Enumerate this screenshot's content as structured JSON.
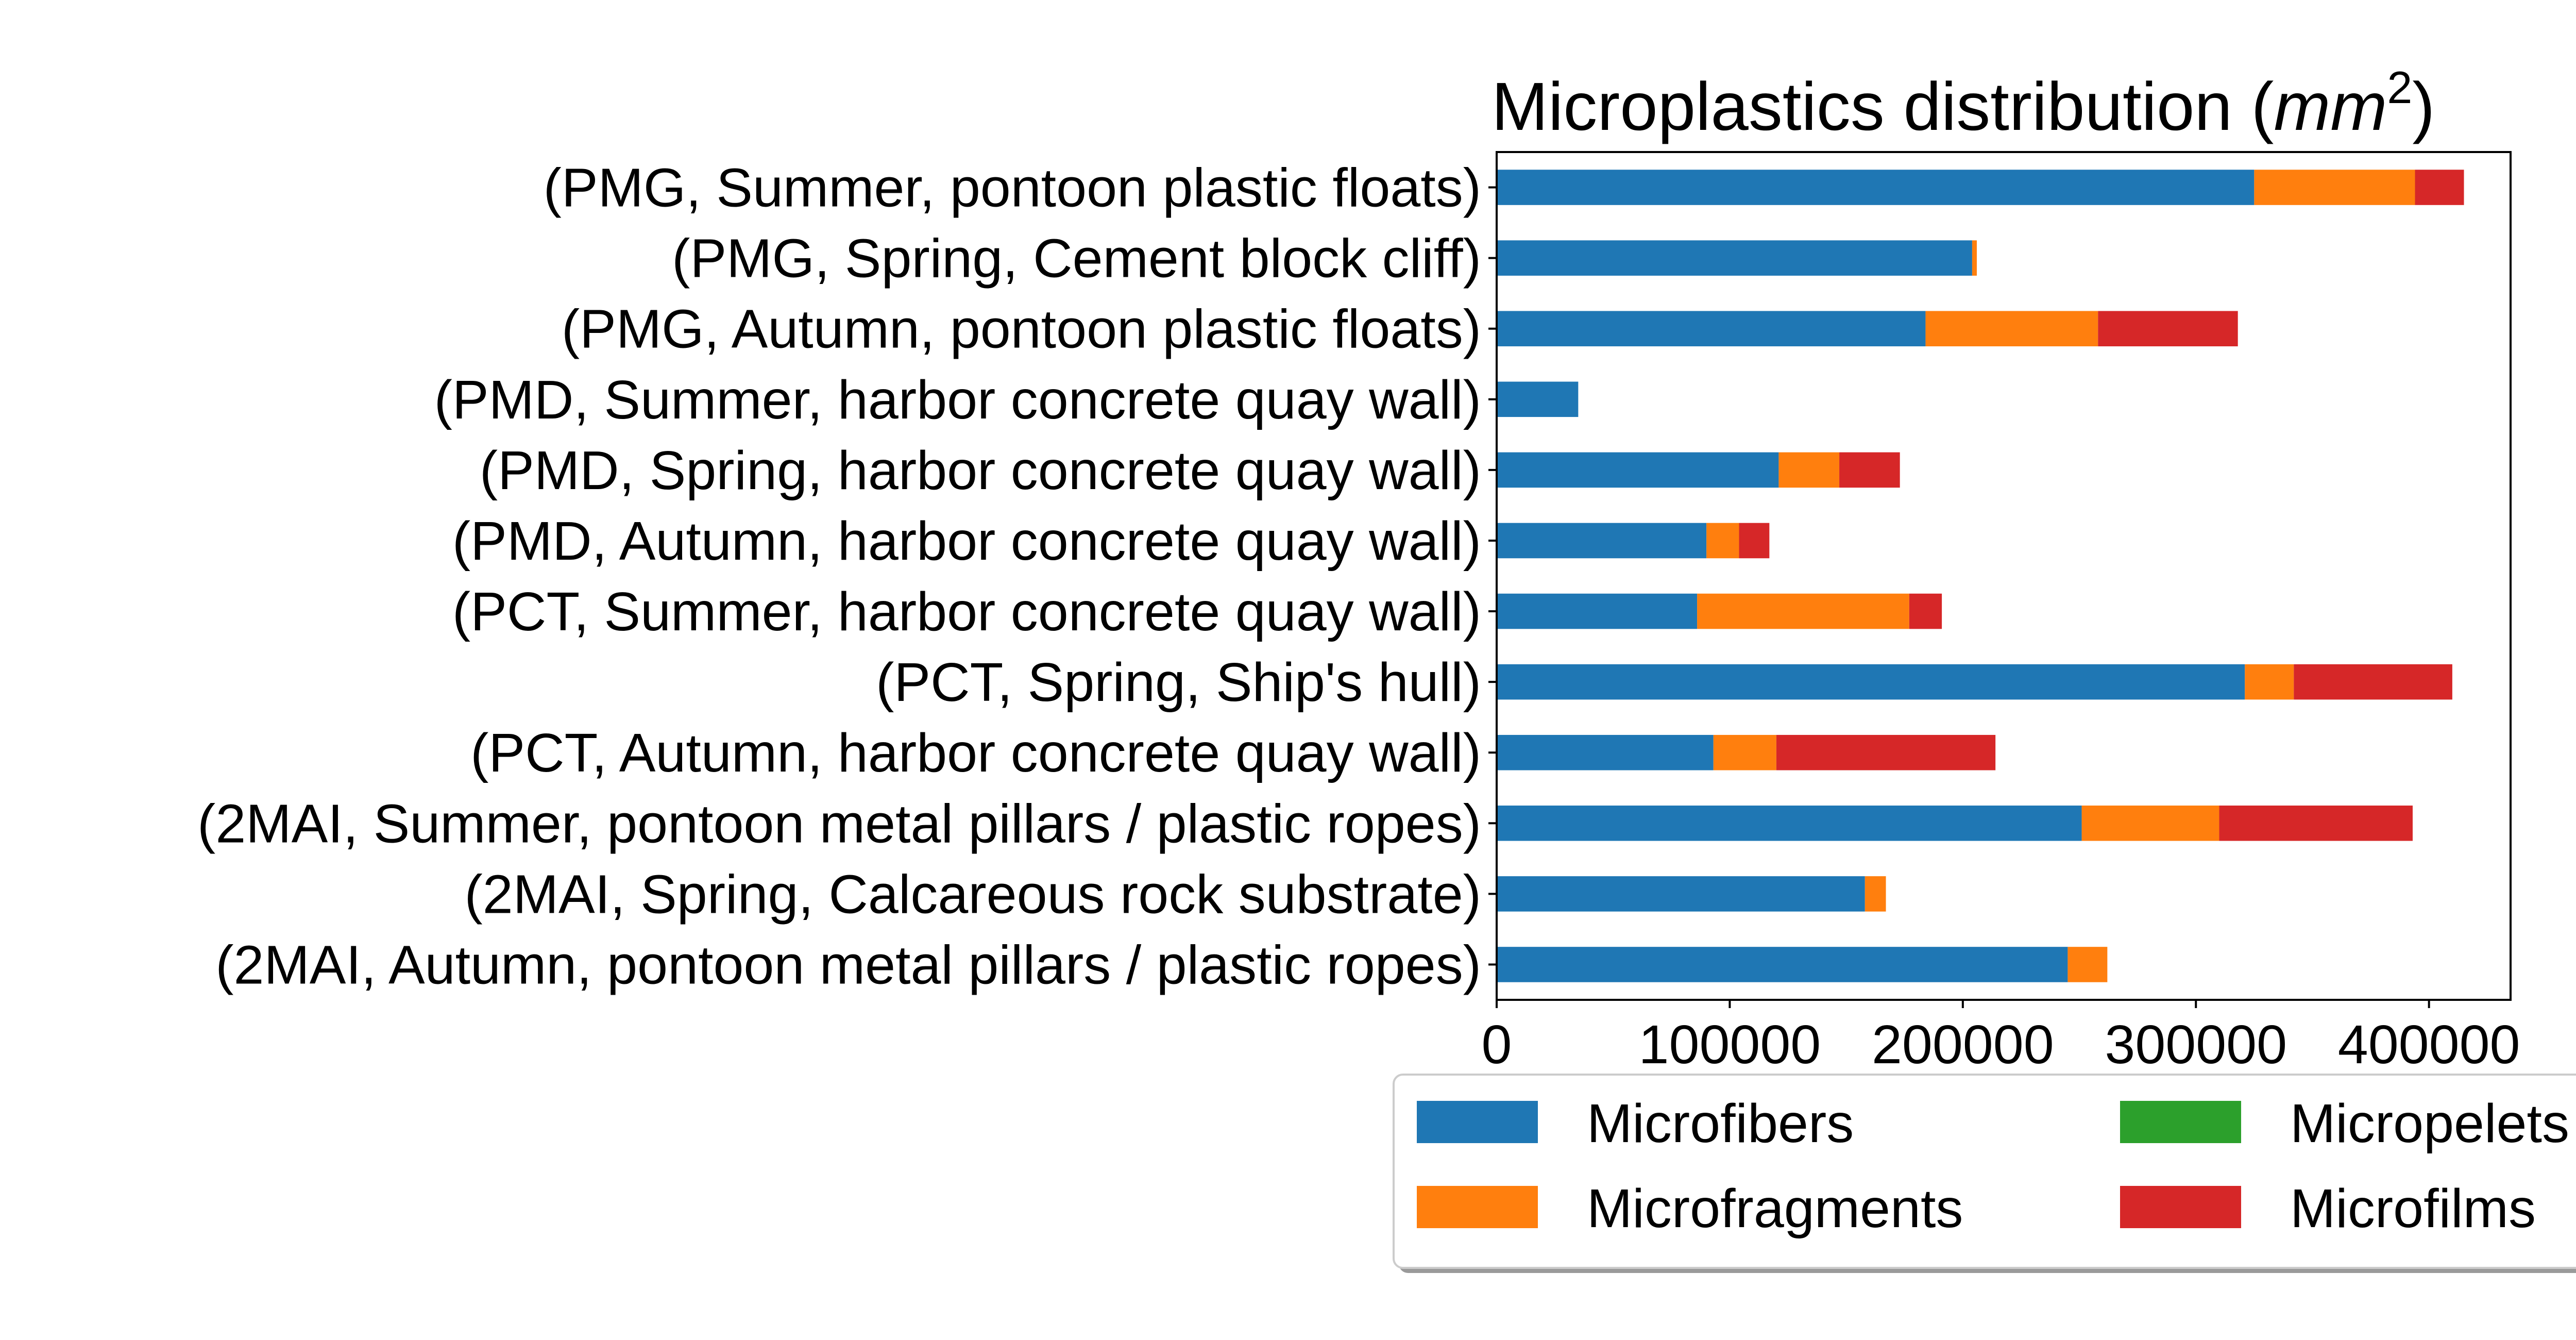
{
  "chart_data": {
    "type": "bar",
    "orientation": "horizontal",
    "stacked": true,
    "title": "Microplastics distribution (mm²)",
    "title_parts": {
      "text": "Microplastics distribution (",
      "math": "mm",
      "sup": "2",
      "close": ")"
    },
    "categories": [
      "(PMG, Summer, pontoon plastic floats)",
      "(PMG, Spring, Cement block cliff)",
      "(PMG, Autumn, pontoon plastic floats)",
      "(PMD, Summer, harbor concrete quay wall)",
      "(PMD, Spring, harbor concrete quay wall)",
      "(PMD, Autumn, harbor concrete quay wall)",
      "(PCT, Summer, harbor concrete quay wall)",
      "(PCT, Spring, Ship's hull)",
      "(PCT, Autumn, harbor concrete quay wall)",
      "(2MAI, Summer, pontoon metal pillars / plastic ropes)",
      "(2MAI, Spring, Calcareous rock substrate)",
      "(2MAI, Autumn, pontoon metal pillars / plastic ropes)"
    ],
    "series": [
      {
        "name": "Microfibers",
        "color": "#1f77b4",
        "values": [
          325000,
          204000,
          184000,
          35000,
          121000,
          90000,
          86000,
          321000,
          93000,
          251000,
          158000,
          245000
        ]
      },
      {
        "name": "Microfragments",
        "color": "#ff7f0e",
        "values": [
          69000,
          2000,
          74000,
          0,
          26000,
          14000,
          91000,
          21000,
          27000,
          59000,
          9000,
          17000
        ]
      },
      {
        "name": "Micropelets",
        "color": "#2ca02c",
        "values": [
          0,
          0,
          0,
          0,
          0,
          0,
          0,
          0,
          0,
          0,
          0,
          0
        ]
      },
      {
        "name": "Microfilms",
        "color": "#d62728",
        "values": [
          21000,
          0,
          60000,
          0,
          26000,
          13000,
          14000,
          68000,
          94000,
          83000,
          0,
          0
        ]
      }
    ],
    "xlim": [
      0,
      435000
    ],
    "xticks": [
      0,
      100000,
      200000,
      300000,
      400000
    ],
    "xtick_labels": [
      "0",
      "100000",
      "200000",
      "300000",
      "400000"
    ],
    "xlabel": "",
    "ylabel": "",
    "grid": false,
    "legend_placement": "bottom-right, below plot, 2 columns, cut off at right edge"
  }
}
